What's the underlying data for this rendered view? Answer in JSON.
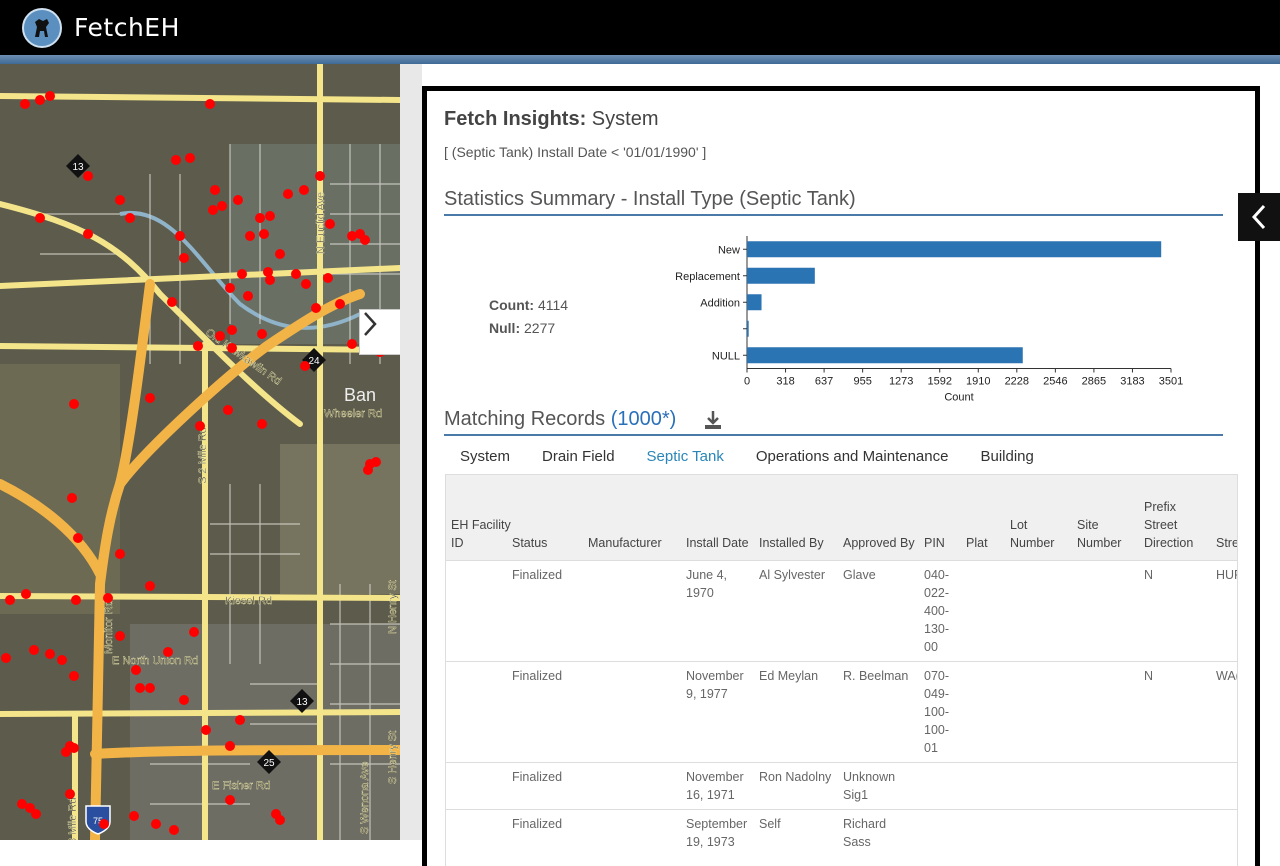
{
  "app": {
    "name": "FetchEH",
    "logo_icon": "dog-icon"
  },
  "map": {
    "labels": {
      "route_13_top": "13",
      "route_24": "24",
      "route_13_mid": "13",
      "route_25": "25",
      "interstate_75": "75",
      "n_euclid": "N Euclid Ave",
      "old_kawkawlin": "Old Kawkawlin Rd",
      "bangor": "Ban",
      "wheeler": "Wheeler Rd",
      "s2mile": "S 2 Mile Rd",
      "kiesel": "Kiesel Rd",
      "monitor": "Monitor Rd",
      "north_union": "E North Union Rd",
      "e_fisher": "E Fisher Rd",
      "s3mile": "3 Mile Rd",
      "s_wenona": "S Wenona Ave",
      "s_henry": "S Henry St",
      "n_henry": "N Henry St"
    }
  },
  "panel": {
    "title_bold": "Fetch Insights:",
    "title_rest": "System",
    "query": "[ (Septic Tank) Install Date < '01/01/1990' ]",
    "stats_title": "Statistics Summary - Install Type (Septic Tank)",
    "count_label": "Count:",
    "count_value": "4114",
    "null_label": "Null:",
    "null_value": "2277",
    "records_title": "Matching Records",
    "records_count": "(1000*)",
    "download_icon": "download-icon"
  },
  "chart_data": {
    "type": "bar",
    "orientation": "horizontal",
    "categories": [
      "New",
      "Replacement",
      "Addition",
      "",
      "NULL"
    ],
    "values": [
      3420,
      560,
      120,
      14,
      2277
    ],
    "xlabel": "Count",
    "xlim": [
      0,
      3501
    ],
    "xticks": [
      "0",
      "318",
      "637",
      "955",
      "1273",
      "1592",
      "1910",
      "2228",
      "2546",
      "2865",
      "3183",
      "3501"
    ],
    "color": "#2a74b4"
  },
  "tabs": [
    {
      "label": "System",
      "active": false
    },
    {
      "label": "Drain Field",
      "active": false
    },
    {
      "label": "Septic Tank",
      "active": true
    },
    {
      "label": "Operations and Maintenance",
      "active": false
    },
    {
      "label": "Building",
      "active": false
    }
  ],
  "table": {
    "columns": [
      "EH Facility ID",
      "Status",
      "Manufacturer",
      "Install Date",
      "Installed By",
      "Approved By",
      "PIN",
      "Plat",
      "Lot Number",
      "Site Number",
      "Prefix Street Direction",
      "Stre"
    ],
    "rows": [
      {
        "facility": "",
        "status": "Finalized",
        "manufacturer": "",
        "install_date": "June 4, 1970",
        "installed_by": "Al Sylvester",
        "approved_by": "Glave",
        "pin": "040-022-400-130-00",
        "plat": "",
        "lot": "",
        "site": "",
        "prefix": "N",
        "street": "HUF"
      },
      {
        "facility": "",
        "status": "Finalized",
        "manufacturer": "",
        "install_date": "November 9, 1977",
        "installed_by": "Ed Meylan",
        "approved_by": "R. Beelman",
        "pin": "070-049-100-100-01",
        "plat": "",
        "lot": "",
        "site": "",
        "prefix": "N",
        "street": "WA("
      },
      {
        "facility": "",
        "status": "Finalized",
        "manufacturer": "",
        "install_date": "November 16, 1971",
        "installed_by": "Ron Nadolny",
        "approved_by": "Unknown Sig1",
        "pin": "",
        "plat": "",
        "lot": "",
        "site": "",
        "prefix": "",
        "street": ""
      },
      {
        "facility": "",
        "status": "Finalized",
        "manufacturer": "",
        "install_date": "September 19, 1973",
        "installed_by": "Self",
        "approved_by": "Richard Sass",
        "pin": "",
        "plat": "",
        "lot": "",
        "site": "",
        "prefix": "",
        "street": ""
      }
    ]
  }
}
